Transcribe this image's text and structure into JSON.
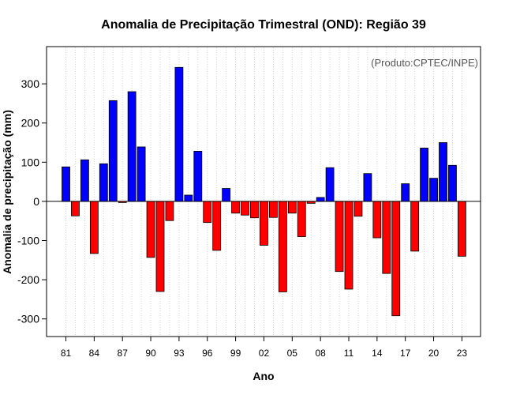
{
  "chart_data": {
    "type": "bar",
    "title": "Anomalia de Precipitação Trimestral (OND): Região 39",
    "xlabel": "Ano",
    "ylabel": "Anomalia de precipitação (mm)",
    "credit": "(Produto:CPTEC/INPE)",
    "ylim": [
      -345,
      395
    ],
    "yticks": [
      -300,
      -200,
      -100,
      0,
      100,
      200,
      300
    ],
    "grid": true,
    "positive_color": "#0000ff",
    "negative_color": "#ff0000",
    "categories": [
      "81",
      "82",
      "83",
      "84",
      "85",
      "86",
      "87",
      "88",
      "89",
      "90",
      "91",
      "92",
      "93",
      "94",
      "95",
      "96",
      "97",
      "98",
      "99",
      "00",
      "01",
      "02",
      "03",
      "04",
      "05",
      "06",
      "07",
      "08",
      "09",
      "10",
      "11",
      "12",
      "13",
      "14",
      "15",
      "16",
      "17",
      "18",
      "19",
      "20",
      "21",
      "22",
      "23"
    ],
    "values": [
      88,
      -37,
      106,
      -133,
      96,
      257,
      -3,
      280,
      139,
      -143,
      -230,
      -49,
      342,
      16,
      128,
      -54,
      -125,
      33,
      -30,
      -35,
      -42,
      -112,
      -41,
      -231,
      -30,
      -90,
      -5,
      10,
      86,
      -179,
      -224,
      -38,
      71,
      -93,
      -184,
      -292,
      45,
      -127,
      136,
      59,
      150,
      92,
      -140
    ],
    "xtick_labels": [
      "81",
      "84",
      "87",
      "90",
      "93",
      "96",
      "99",
      "02",
      "05",
      "08",
      "11",
      "14",
      "17",
      "20",
      "23"
    ],
    "xtick_indices": [
      0,
      3,
      6,
      9,
      12,
      15,
      18,
      21,
      24,
      27,
      30,
      33,
      36,
      39,
      42
    ]
  }
}
